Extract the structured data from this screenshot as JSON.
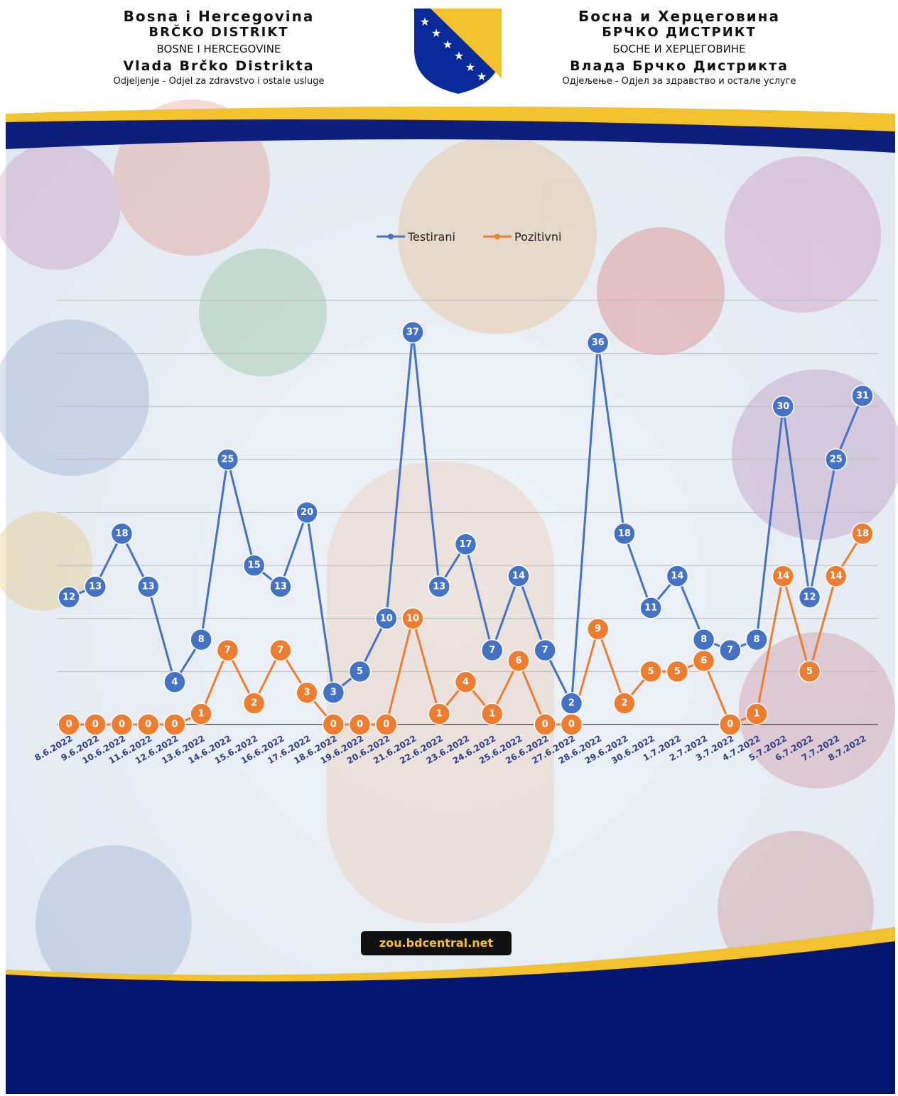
{
  "header": {
    "left": [
      "Bosna i Hercegovina",
      "BRČKO DISTRIKT",
      "BOSNE I HERCEGOVINE",
      "Vlada Brčko Distrikta",
      "Odjeljenje - Odjel za zdravstvo i ostale usluge"
    ],
    "right": [
      "Босна и Херцеговина",
      "БРЧКО ДИСТРИКТ",
      "БОСНЕ И ХЕРЦЕГОВИНЕ",
      "Влада Брчко Дистрикта",
      "Одјељење - Одјел за здравство и остале услуге"
    ]
  },
  "footer": {
    "url": "zou.bdcentral.net"
  },
  "chart_data": {
    "type": "line",
    "categories": [
      "8.6.2022",
      "9.6.2022",
      "10.6.2022",
      "11.6.2022",
      "12.6.2022",
      "13.6.2022",
      "14.6.2022",
      "15.6.2022",
      "16.6.2022",
      "17.6.2022",
      "18.6.2022",
      "19.6.2022",
      "20.6.2022",
      "21.6.2022",
      "22.6.2022",
      "23.6.2022",
      "24.6.2022",
      "25.6.2022",
      "26.6.2022",
      "27.6.2022",
      "28.6.2022",
      "29.6.2022",
      "30.6.2022",
      "1.7.2022",
      "2.7.2022",
      "3.7.2022",
      "4.7.2022",
      "5.7.2022",
      "6.7.2022",
      "7.7.2022",
      "8.7.2022"
    ],
    "series": [
      {
        "name": "Testirani",
        "color": "#4472c4",
        "values": [
          12,
          13,
          18,
          13,
          4,
          8,
          25,
          15,
          13,
          20,
          3,
          5,
          10,
          37,
          13,
          17,
          7,
          14,
          7,
          2,
          36,
          18,
          11,
          14,
          8,
          7,
          8,
          30,
          12,
          25,
          31
        ]
      },
      {
        "name": "Pozitivni",
        "color": "#ed7d31",
        "values": [
          0,
          0,
          0,
          0,
          0,
          1,
          7,
          2,
          7,
          3,
          0,
          0,
          0,
          10,
          1,
          4,
          1,
          6,
          0,
          0,
          9,
          2,
          5,
          5,
          6,
          0,
          1,
          14,
          5,
          14,
          18
        ]
      }
    ],
    "ylim": [
      0,
      40
    ],
    "yticks": [
      0,
      5,
      10,
      15,
      20,
      25,
      30,
      35,
      40
    ],
    "grid": true,
    "legend": "top"
  }
}
